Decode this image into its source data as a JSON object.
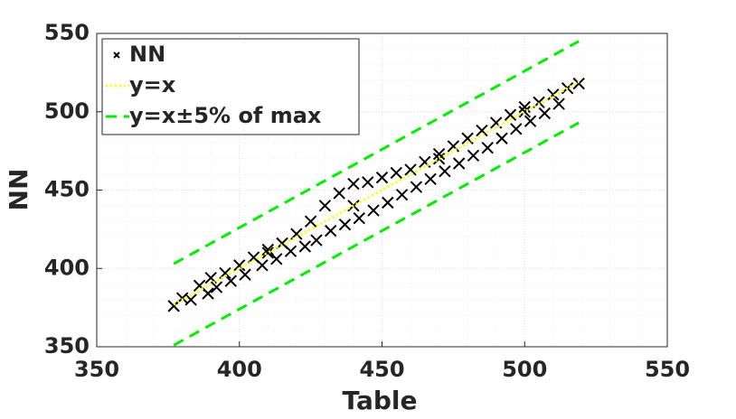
{
  "chart_data": {
    "type": "scatter",
    "xlabel": "Table",
    "ylabel": "NN",
    "xlim": [
      350,
      550
    ],
    "xticks": [
      350,
      400,
      450,
      500,
      550
    ],
    "ylim": [
      350,
      550
    ],
    "yticks": [
      350,
      400,
      450,
      500,
      550
    ],
    "grid": true,
    "minor_grid": true,
    "legend": "northwest",
    "series": [
      {
        "name": "NN",
        "color": "#000000",
        "marker": "x",
        "x": [
          377,
          380,
          383,
          386,
          389,
          390,
          392,
          395,
          397,
          400,
          402,
          405,
          408,
          410,
          410,
          413,
          415,
          418,
          420,
          423,
          425,
          427,
          430,
          432,
          435,
          437,
          440,
          440,
          442,
          445,
          447,
          450,
          452,
          455,
          457,
          460,
          462,
          465,
          467,
          470,
          470,
          472,
          475,
          477,
          480,
          482,
          485,
          487,
          490,
          492,
          495,
          497,
          500,
          500,
          502,
          505,
          507,
          510,
          512,
          515,
          519
        ],
        "values": [
          376,
          381,
          380,
          389,
          384,
          394,
          388,
          397,
          392,
          402,
          396,
          407,
          402,
          412,
          410,
          406,
          416,
          411,
          422,
          414,
          430,
          418,
          440,
          424,
          448,
          428,
          454,
          440,
          432,
          455,
          437,
          458,
          442,
          461,
          447,
          463,
          452,
          468,
          457,
          473,
          470,
          462,
          478,
          467,
          483,
          472,
          488,
          477,
          493,
          483,
          498,
          489,
          503,
          500,
          494,
          506,
          499,
          511,
          505,
          515,
          518
        ]
      },
      {
        "name": "y=x",
        "color": "#ffff00",
        "linestyle": "dotted",
        "x": [
          377,
          519
        ],
        "values": [
          377,
          519
        ]
      },
      {
        "name": "y=x±5% of max",
        "color": "#00ee00",
        "linestyle": "dashed",
        "x": [
          377,
          519
        ],
        "values": [
          403,
          545
        ]
      },
      {
        "name": null,
        "color": "#00ee00",
        "linestyle": "dashed",
        "x": [
          377,
          519
        ],
        "values": [
          351,
          493
        ]
      }
    ]
  }
}
